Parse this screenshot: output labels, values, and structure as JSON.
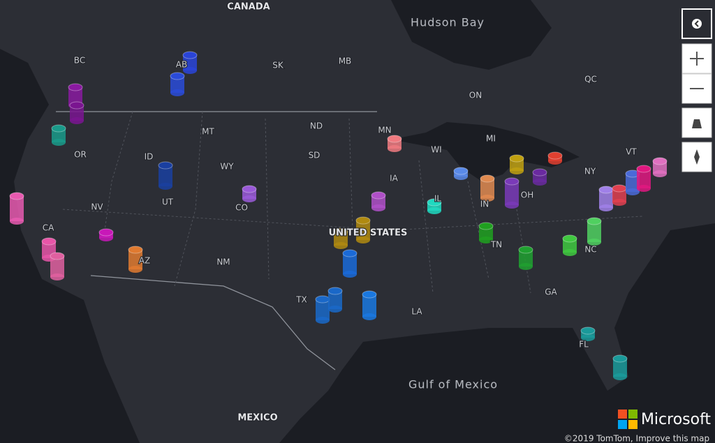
{
  "map": {
    "labels": [
      "CANADA",
      "Hudson Bay",
      "BC",
      "AB",
      "SK",
      "MB",
      "ON",
      "QC",
      "MT",
      "ND",
      "MN",
      "WI",
      "MI",
      "NY",
      "VT",
      "OR",
      "ID",
      "WY",
      "SD",
      "IA",
      "IL",
      "IN",
      "OH",
      "NV",
      "UT",
      "CO",
      "CA",
      "UNITED STATES",
      "NM",
      "TN",
      "NC",
      "AZ",
      "TX",
      "GA",
      "LA",
      "FL",
      "Gulf of Mexico",
      "MEXICO"
    ]
  },
  "brand": "Microsoft",
  "attribution": "©2019 TomTom, Improve this map"
}
